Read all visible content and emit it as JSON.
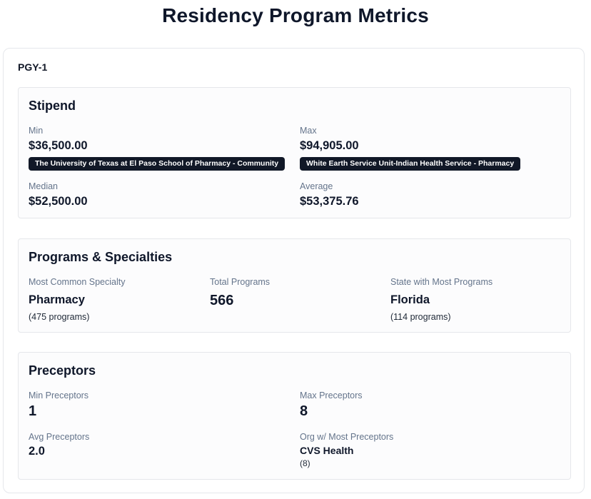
{
  "page": {
    "title": "Residency Program Metrics"
  },
  "level": {
    "label": "PGY-1"
  },
  "stipend": {
    "title": "Stipend",
    "min": {
      "label": "Min",
      "value": "$36,500.00",
      "program": "The University of Texas at El Paso School of Pharmacy - Community"
    },
    "max": {
      "label": "Max",
      "value": "$94,905.00",
      "program": "White Earth Service Unit-Indian Health Service - Pharmacy"
    },
    "median": {
      "label": "Median",
      "value": "$52,500.00"
    },
    "average": {
      "label": "Average",
      "value": "$53,375.76"
    }
  },
  "programs": {
    "title": "Programs & Specialties",
    "common_specialty": {
      "label": "Most Common Specialty",
      "value": "Pharmacy",
      "sub": "(475 programs)"
    },
    "total": {
      "label": "Total Programs",
      "value": "566"
    },
    "top_state": {
      "label": "State with Most Programs",
      "value": "Florida",
      "sub": "(114 programs)"
    }
  },
  "preceptors": {
    "title": "Preceptors",
    "min": {
      "label": "Min Preceptors",
      "value": "1"
    },
    "max": {
      "label": "Max Preceptors",
      "value": "8"
    },
    "avg": {
      "label": "Avg Preceptors",
      "value": "2.0"
    },
    "top_org": {
      "label": "Org w/ Most Preceptors",
      "value": "CVS Health",
      "sub": "(8)"
    }
  }
}
